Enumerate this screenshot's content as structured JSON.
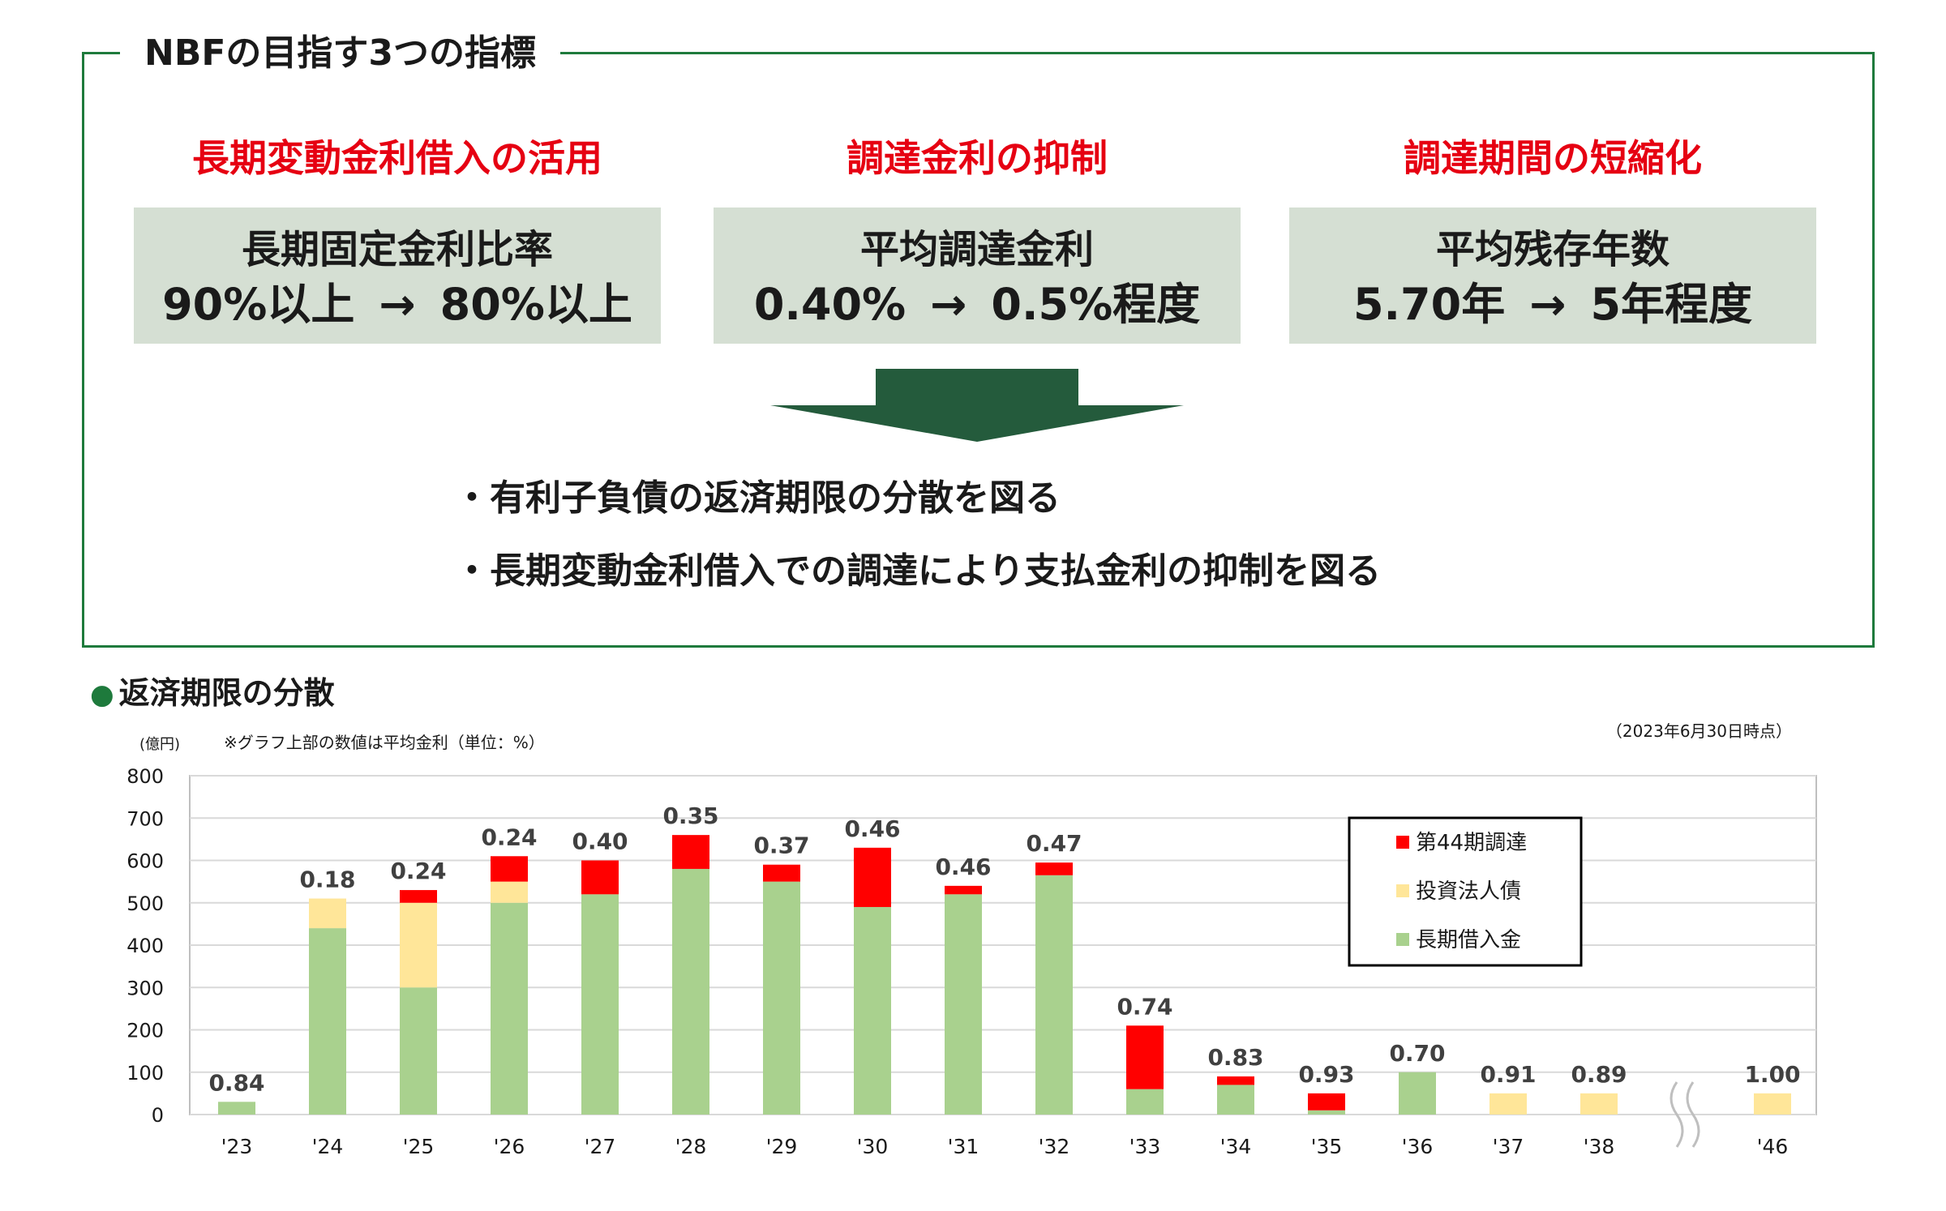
{
  "header": {
    "title": "NBFの目指す3つの指標"
  },
  "indicators": [
    {
      "heading": "長期変動金利借入の活用",
      "label": "長期固定金利比率",
      "from": "90%以上",
      "arrow": "→",
      "to": "80%以上"
    },
    {
      "heading": "調達金利の抑制",
      "label": "平均調達金利",
      "from": "0.40%",
      "arrow": "→",
      "to": "0.5%程度"
    },
    {
      "heading": "調達期間の短縮化",
      "label": "平均残存年数",
      "from": "5.70年",
      "arrow": "→",
      "to": "5年程度"
    }
  ],
  "points": [
    "・有利子負債の返済期限の分散を図る",
    "・長期変動金利借入での調達により支払金利の抑制を図る"
  ],
  "section": {
    "bullet": "●",
    "title": "返済期限の分散"
  },
  "chart_note": "※グラフ上部の数値は平均金利（単位：%）",
  "as_of": "（2023年6月30日時点）",
  "colors": {
    "frame": "#1e7a3c",
    "heading_red": "#e60012",
    "box_bg": "#d5dfd3",
    "arrow": "#245b3c",
    "long_term_loan": "#a9d18e",
    "bonds": "#ffe699",
    "new_44th": "#ff0000"
  },
  "chart_data": {
    "type": "bar",
    "stacked": true,
    "ylabel": "(億円)",
    "ylim": [
      0,
      800
    ],
    "yticks": [
      0,
      100,
      200,
      300,
      400,
      500,
      600,
      700,
      800
    ],
    "grid": true,
    "legend_position": "top-right",
    "axis_break_between": [
      "'38",
      "'46"
    ],
    "categories": [
      "'23",
      "'24",
      "'25",
      "'26",
      "'27",
      "'28",
      "'29",
      "'30",
      "'31",
      "'32",
      "'33",
      "'34",
      "'35",
      "'36",
      "'37",
      "'38",
      "'46"
    ],
    "series": [
      {
        "name": "長期借入金",
        "color": "#a9d18e",
        "values": [
          30,
          440,
          300,
          500,
          520,
          580,
          550,
          490,
          520,
          565,
          60,
          70,
          10,
          100,
          0,
          0,
          0
        ]
      },
      {
        "name": "投資法人債",
        "color": "#ffe699",
        "values": [
          0,
          70,
          200,
          50,
          0,
          0,
          0,
          0,
          0,
          0,
          0,
          0,
          0,
          0,
          50,
          50,
          50
        ]
      },
      {
        "name": "第44期調達",
        "color": "#ff0000",
        "values": [
          0,
          0,
          30,
          60,
          80,
          80,
          40,
          140,
          20,
          30,
          150,
          20,
          40,
          0,
          0,
          0,
          0
        ]
      }
    ],
    "rate_labels": [
      "0.84",
      "0.18",
      "0.24",
      "0.24",
      "0.40",
      "0.35",
      "0.37",
      "0.46",
      "0.46",
      "0.47",
      "0.74",
      "0.83",
      "0.93",
      "0.70",
      "0.91",
      "0.89",
      "1.00"
    ],
    "legend_order": [
      "第44期調達",
      "投資法人債",
      "長期借入金"
    ]
  }
}
